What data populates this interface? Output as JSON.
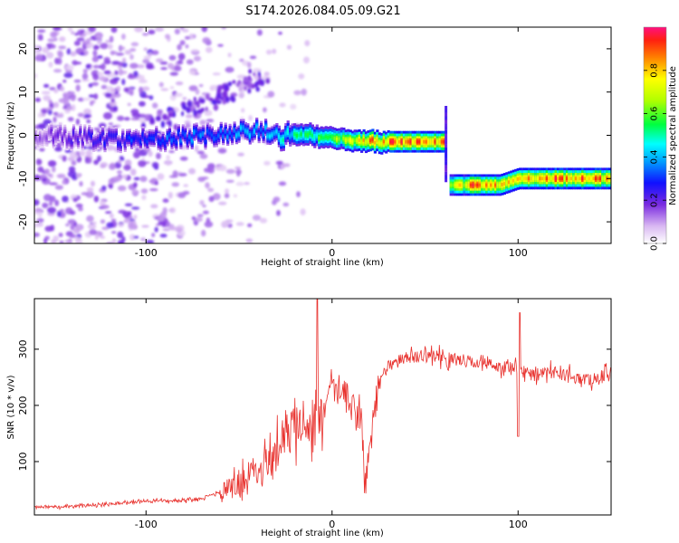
{
  "title": "S174.2026.084.05.09.G21",
  "chart_data": [
    {
      "type": "heatmap",
      "title": "S174.2026.084.05.09.G21",
      "xlabel": "Height of straight line (km)",
      "ylabel": "Frequency (Hz)",
      "xlim": [
        -160,
        150
      ],
      "ylim": [
        -25,
        25
      ],
      "xticks": [
        -100,
        0,
        100
      ],
      "xtick_labels": [
        "-100",
        "0",
        "100"
      ],
      "yticks": [
        -20,
        -10,
        0,
        10,
        20
      ],
      "ytick_labels": [
        "-20",
        "-10",
        "0",
        "10",
        "20"
      ],
      "colorbar": {
        "label": "Normalized spectral amplitude",
        "range": [
          0,
          1
        ],
        "ticks": [
          0.0,
          0.2,
          0.4,
          0.6,
          0.8
        ],
        "tick_labels": [
          "0.0",
          "0.2",
          "0.4",
          "0.6",
          "0.8"
        ]
      },
      "ridge": [
        {
          "x": -160,
          "freq": 0,
          "amp": 0.15
        },
        {
          "x": -110,
          "freq": -1,
          "amp": 0.3
        },
        {
          "x": -80,
          "freq": -0.5,
          "amp": 0.35
        },
        {
          "x": -40,
          "freq": 1,
          "amp": 0.4
        },
        {
          "x": -30,
          "freq": 0,
          "amp": 0.45
        },
        {
          "x": -10,
          "freq": 0,
          "amp": 0.55
        },
        {
          "x": 0,
          "freq": -1,
          "amp": 0.6
        },
        {
          "x": 10,
          "freq": -1,
          "amp": 0.7
        },
        {
          "x": 20,
          "freq": -1.5,
          "amp": 0.85
        },
        {
          "x": 40,
          "freq": -1.5,
          "amp": 0.95
        },
        {
          "x": 60,
          "freq": -1.5,
          "amp": 0.85
        },
        {
          "x": 62,
          "freq": -11.5,
          "amp": 0.6
        },
        {
          "x": 75,
          "freq": -11.5,
          "amp": 0.9
        },
        {
          "x": 90,
          "freq": -11.5,
          "amp": 0.8
        },
        {
          "x": 100,
          "freq": -10,
          "amp": 0.85
        },
        {
          "x": 120,
          "freq": -10,
          "amp": 0.9
        },
        {
          "x": 150,
          "freq": -10,
          "amp": 0.85
        }
      ]
    },
    {
      "type": "line",
      "xlabel": "Height of straight line (km)",
      "ylabel": "SNR (10 * v/v)",
      "xlim": [
        -160,
        150
      ],
      "ylim": [
        5,
        390
      ],
      "xticks": [
        -100,
        0,
        100
      ],
      "xtick_labels": [
        "-100",
        "0",
        "100"
      ],
      "yticks": [
        100,
        200,
        300
      ],
      "ytick_labels": [
        "100",
        "200",
        "300"
      ],
      "series": [
        {
          "name": "SNR",
          "color": "#e8322e",
          "x": [
            -160,
            -140,
            -120,
            -100,
            -90,
            -80,
            -70,
            -60,
            -50,
            -40,
            -30,
            -20,
            -15,
            -10,
            -5,
            0,
            5,
            10,
            15,
            18,
            20,
            25,
            30,
            40,
            50,
            60,
            70,
            80,
            90,
            100,
            110,
            120,
            130,
            140,
            150
          ],
          "y": [
            20,
            20,
            25,
            30,
            30,
            30,
            35,
            45,
            60,
            90,
            120,
            160,
            180,
            150,
            180,
            220,
            230,
            200,
            180,
            60,
            130,
            240,
            270,
            285,
            290,
            285,
            280,
            275,
            270,
            265,
            255,
            260,
            250,
            245,
            260
          ]
        }
      ]
    }
  ]
}
